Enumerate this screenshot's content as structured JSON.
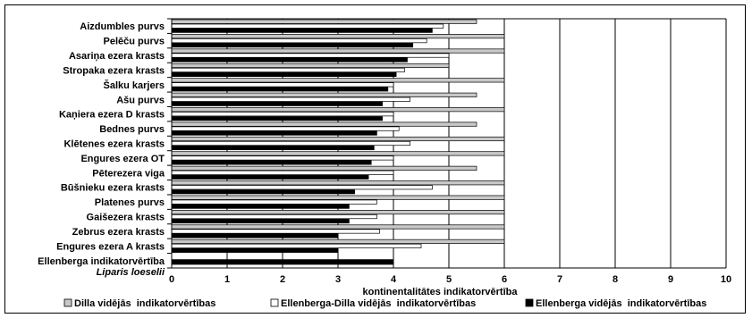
{
  "chart_data": {
    "type": "bar",
    "orientation": "horizontal",
    "categories": [
      "Aizdumbles purvs",
      "Pelēču purvs",
      "Asariņa ezera krasts",
      "Stropaka ezera krasts",
      "Šalku karjers",
      "Ašu purvs",
      "Kaņiera ezera D krasts",
      "Bednes purvs",
      "Klētenes ezera krasts",
      "Engures ezera OT",
      "Pēterezera viga",
      "Būšnieku ezera krasts",
      "Platenes purvs",
      "Gaišezera krasts",
      "Zebrus ezera krasts",
      "Engures ezera A krasts",
      "Ellenberga indikatorvērtība|Liparis loeselii"
    ],
    "series": [
      {
        "name": "Dilla vidējās  indikatorvērtības",
        "color": "#c8c8c8",
        "values": [
          5.5,
          6.0,
          6.0,
          5.0,
          6.0,
          5.5,
          6.0,
          5.5,
          6.0,
          6.0,
          5.5,
          6.0,
          6.0,
          6.0,
          6.0,
          6.0,
          null
        ]
      },
      {
        "name": "Ellenberga-Dilla vidējās  indikatorvērtības",
        "color": "#ffffff",
        "values": [
          4.9,
          4.6,
          5.0,
          4.2,
          4.0,
          4.3,
          4.0,
          4.1,
          4.3,
          4.0,
          4.0,
          4.7,
          3.7,
          3.7,
          3.75,
          4.5,
          null
        ]
      },
      {
        "name": "Ellenberga vidējās  indikatorvērtības",
        "color": "#000000",
        "values": [
          4.7,
          4.35,
          4.25,
          4.05,
          3.9,
          3.8,
          3.8,
          3.7,
          3.65,
          3.6,
          3.55,
          3.3,
          3.2,
          3.2,
          3.0,
          3.0,
          4.0
        ]
      }
    ],
    "xlabel": "kontinentalitātes indikatorvērtība",
    "xlim": [
      0,
      10
    ],
    "xticks": [
      "0",
      "1",
      "2",
      "3",
      "4",
      "5",
      "6",
      "7",
      "8",
      "9",
      "10"
    ],
    "grid": "vertical",
    "legend": "bottom"
  }
}
